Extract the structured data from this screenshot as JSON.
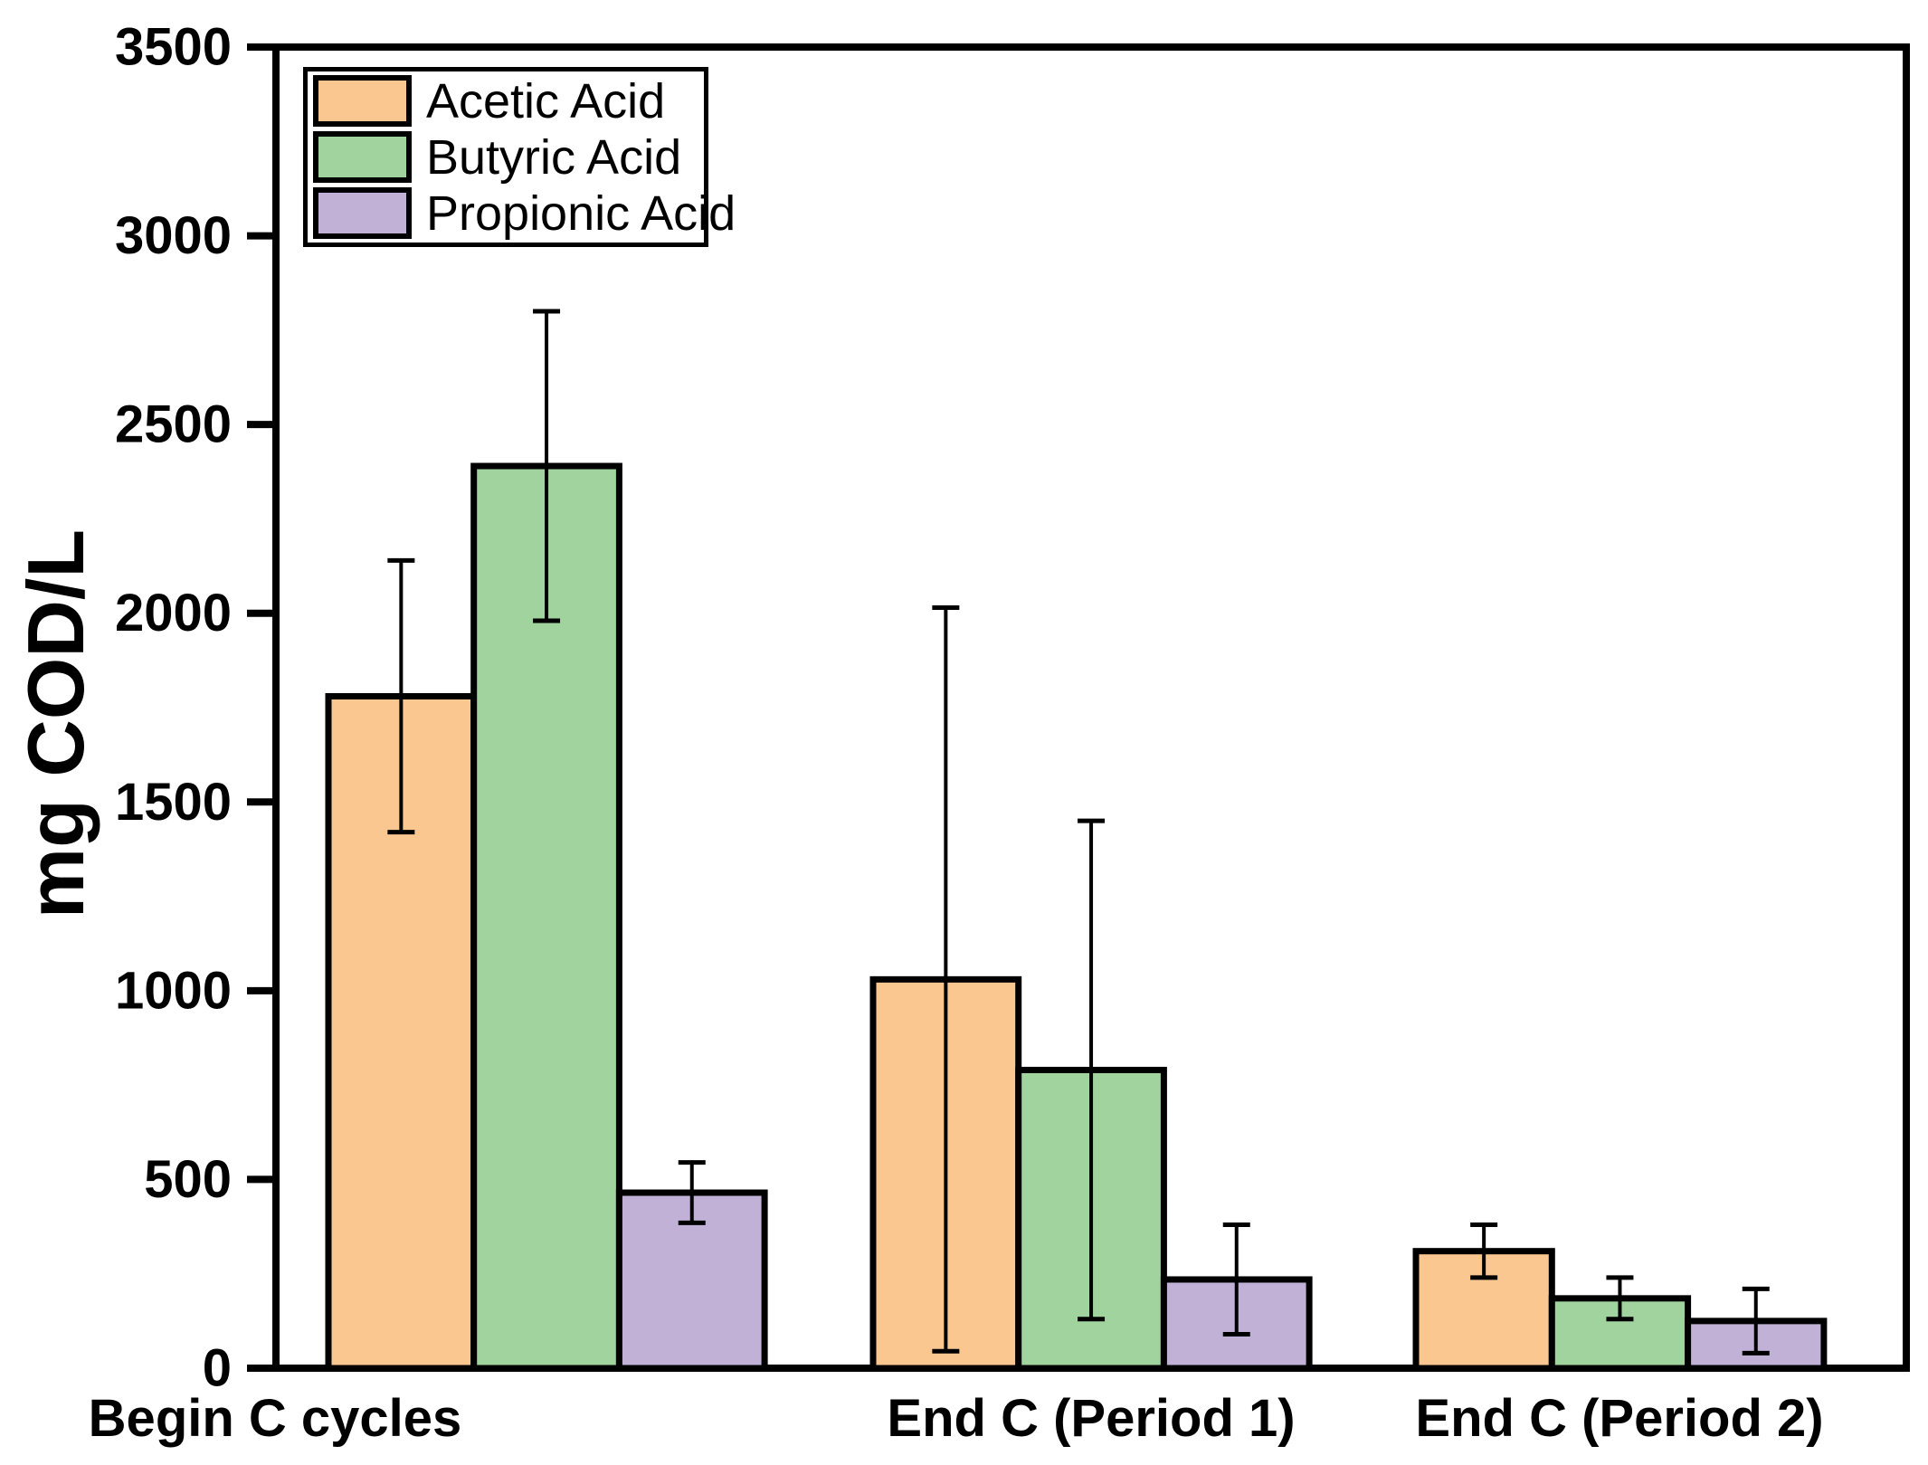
{
  "figure": {
    "background": "#FFFFFF",
    "axis_color": "#000000"
  },
  "chart_data": {
    "type": "bar",
    "title": "",
    "xlabel": "",
    "ylabel": "mg COD/L",
    "ylim": [
      0,
      3500
    ],
    "yticks": [
      0,
      500,
      1000,
      1500,
      2000,
      2500,
      3000,
      3500
    ],
    "grid": false,
    "legend_position": "top-left",
    "error_bars": "symmetric, black caps",
    "categories": [
      "Begin C cycles",
      "End C (Period 1)",
      "End C (Period 2)"
    ],
    "series": [
      {
        "name": "Acetic Acid",
        "color": "#FAC791",
        "values": [
          1780,
          1030,
          310
        ],
        "errors": [
          360,
          985,
          70
        ]
      },
      {
        "name": "Butyric Acid",
        "color": "#A0D39E",
        "values": [
          2390,
          790,
          185
        ],
        "errors": [
          410,
          660,
          55
        ]
      },
      {
        "name": "Propionic Acid",
        "color": "#C1B1D6",
        "values": [
          465,
          235,
          125
        ],
        "errors": [
          80,
          145,
          85
        ]
      }
    ]
  }
}
